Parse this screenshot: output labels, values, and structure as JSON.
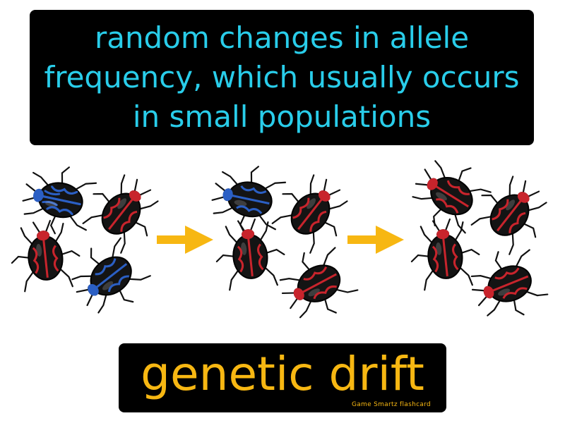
{
  "definition": {
    "text": "random changes in allele frequency, which usually occurs in small populations"
  },
  "term": {
    "text": "genetic drift"
  },
  "brand": {
    "text": "Game Smartz flashcard"
  },
  "illustration": {
    "groups": [
      {
        "beetles": [
          "blue",
          "red",
          "red",
          "blue"
        ]
      },
      {
        "beetles": [
          "blue",
          "red",
          "red",
          "red"
        ]
      },
      {
        "beetles": [
          "red",
          "red",
          "red",
          "red"
        ]
      }
    ],
    "arrow_icon": "right-arrow-icon"
  },
  "colors": {
    "definition_text": "#29cdea",
    "term_text": "#f7b712",
    "arrow": "#f7b712",
    "beetle_blue": "#2b5fc4",
    "beetle_red": "#c8242c",
    "box_background": "#000000"
  }
}
